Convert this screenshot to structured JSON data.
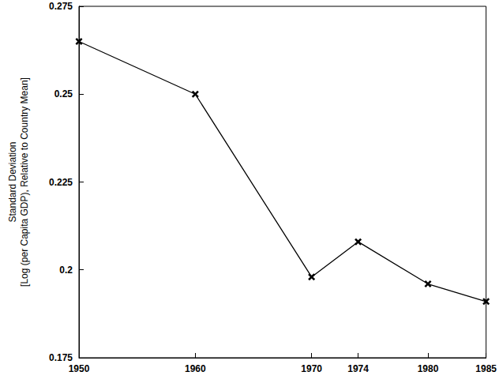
{
  "chart_data": {
    "type": "line",
    "x": [
      1950,
      1960,
      1970,
      1974,
      1980,
      1985
    ],
    "values": [
      0.265,
      0.25,
      0.198,
      0.208,
      0.196,
      0.191
    ],
    "ylabel": "Standard Deviation\n[Log (per Capita GDP), Relative to Country Mean]",
    "xlim": [
      1950,
      1985
    ],
    "xticks": [
      1950,
      1960,
      1970,
      1974,
      1980,
      1985
    ],
    "ylim": [
      0.175,
      0.275
    ],
    "yticks": [
      0.175,
      0.2,
      0.225,
      0.25,
      0.275
    ],
    "color": "#000000",
    "marker": "x",
    "grid": false
  }
}
